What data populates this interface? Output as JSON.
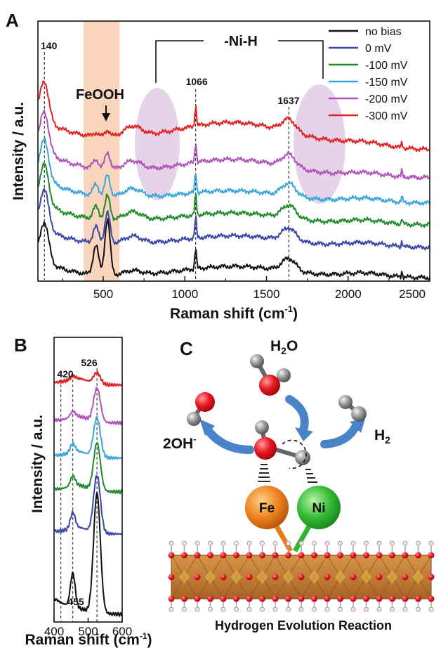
{
  "chart_data": [
    {
      "panel": "A",
      "type": "line",
      "xlabel": "Raman shift (cm",
      "xlabel_sup": "-1",
      "xlabel_end": ")",
      "ylabel": "Intensity / a.u.",
      "xlim": [
        100,
        2500
      ],
      "xticks": [
        "500",
        "1000",
        "1500",
        "2000",
        "2500"
      ],
      "highlight_band": [
        380,
        600
      ],
      "highlight_label": "FeOOH",
      "bracket_label": "-Ni-H",
      "peak_labels": [
        "140",
        "1066",
        "1637"
      ],
      "peak_positions": [
        140,
        1066,
        1637
      ],
      "legend_position": "top-right",
      "series": [
        {
          "name": "no bias",
          "color": "#111111"
        },
        {
          "name": "0 mV",
          "color": "#3a45a8"
        },
        {
          "name": "-100 mV",
          "color": "#1f8a2b"
        },
        {
          "name": "-150 mV",
          "color": "#3aa4dc"
        },
        {
          "name": "-200 mV",
          "color": "#b053b8"
        },
        {
          "name": "-300 mV",
          "color": "#e22222"
        }
      ]
    },
    {
      "panel": "B",
      "type": "line",
      "xlabel": "Raman shift (cm",
      "xlabel_sup": "-1",
      "xlabel_end": ")",
      "ylabel": "Intensity / a.u.",
      "xlim": [
        400,
        600
      ],
      "xticks": [
        "400",
        "500",
        "600"
      ],
      "peak_labels": [
        "420",
        "526",
        "455"
      ],
      "peak_positions": [
        420,
        526,
        455
      ]
    }
  ],
  "panels": {
    "a": "A",
    "b": "B",
    "c": "C"
  },
  "scheme": {
    "h2o": "H",
    "h2o_sub": "2",
    "h2o_end": "O",
    "oh": "2OH",
    "oh_sup": "-",
    "h2": "H",
    "h2_sub": "2",
    "fe": "Fe",
    "ni": "Ni",
    "reaction": "Hydrogen Evolution Reaction",
    "colors": {
      "oxygen": "#e0141e",
      "hydrogen": "#8a8a8a",
      "fe": "#e87a1c",
      "ni": "#2fb52f",
      "arrow": "#4a84c8",
      "slab": "#c8863c"
    }
  }
}
